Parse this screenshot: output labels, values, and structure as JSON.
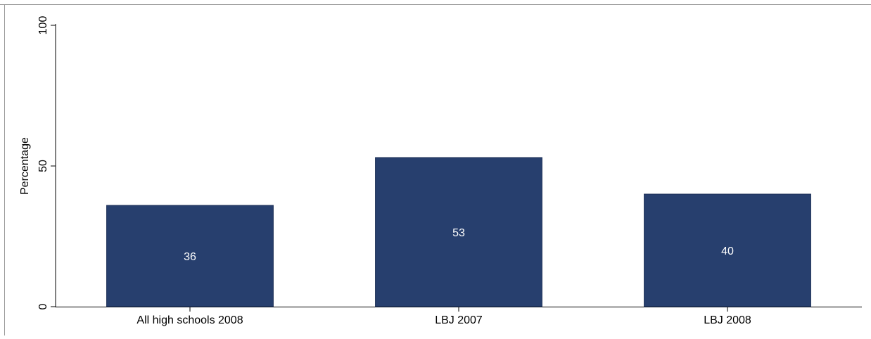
{
  "chart_data": {
    "type": "bar",
    "title": "",
    "xlabel": "",
    "ylabel": "Percentage",
    "categories": [
      "All high schools 2008",
      "LBJ 2007",
      "LBJ 2008"
    ],
    "values": [
      36,
      53,
      40
    ],
    "value_labels": [
      "36",
      "53",
      "40"
    ],
    "ylim": [
      0,
      100
    ],
    "yticks": [
      0,
      50,
      100
    ],
    "ytick_labels": [
      "0",
      "50",
      "100"
    ],
    "grid": false,
    "legend": "none",
    "bar_color": "#273f6e",
    "bar_label_color": "#ffffff"
  }
}
